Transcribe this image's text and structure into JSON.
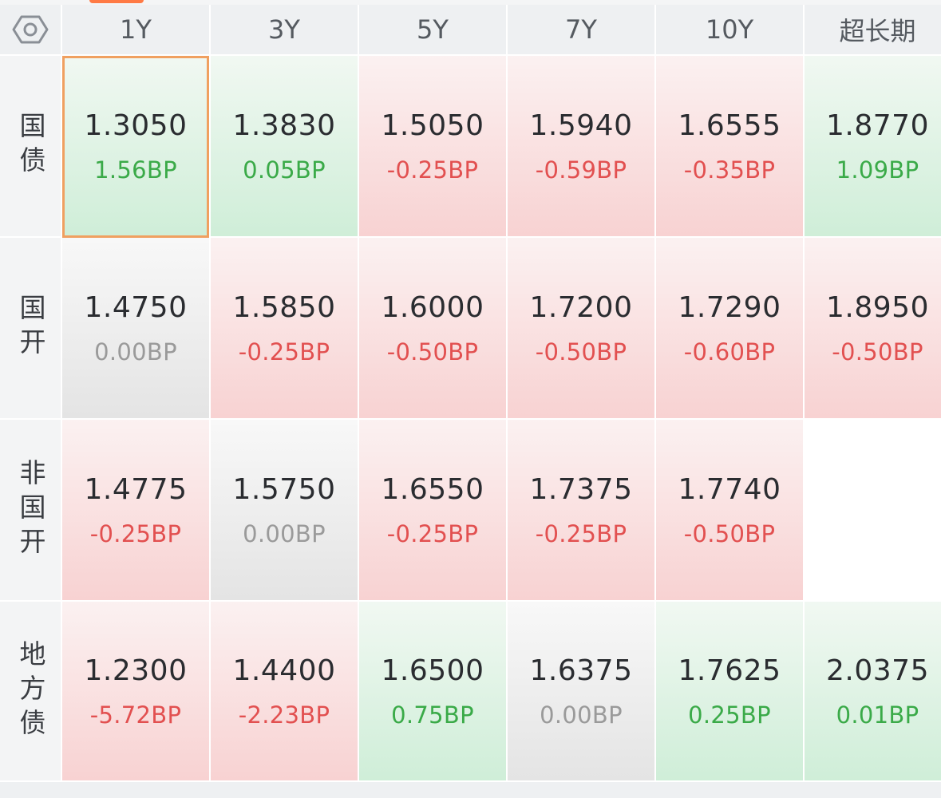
{
  "header": {
    "columns": [
      "1Y",
      "3Y",
      "5Y",
      "7Y",
      "10Y",
      "超长期"
    ]
  },
  "rows": [
    {
      "label": "国债",
      "cells": [
        {
          "rate": "1.3050",
          "chg": "1.56BP"
        },
        {
          "rate": "1.3830",
          "chg": "0.05BP"
        },
        {
          "rate": "1.5050",
          "chg": "-0.25BP"
        },
        {
          "rate": "1.5940",
          "chg": "-0.59BP"
        },
        {
          "rate": "1.6555",
          "chg": "-0.35BP"
        },
        {
          "rate": "1.8770",
          "chg": "1.09BP"
        }
      ]
    },
    {
      "label": "国开",
      "cells": [
        {
          "rate": "1.4750",
          "chg": "0.00BP"
        },
        {
          "rate": "1.5850",
          "chg": "-0.25BP"
        },
        {
          "rate": "1.6000",
          "chg": "-0.50BP"
        },
        {
          "rate": "1.7200",
          "chg": "-0.50BP"
        },
        {
          "rate": "1.7290",
          "chg": "-0.60BP"
        },
        {
          "rate": "1.8950",
          "chg": "-0.50BP"
        }
      ]
    },
    {
      "label": "非国开",
      "cells": [
        {
          "rate": "1.4775",
          "chg": "-0.25BP"
        },
        {
          "rate": "1.5750",
          "chg": "0.00BP"
        },
        {
          "rate": "1.6550",
          "chg": "-0.25BP"
        },
        {
          "rate": "1.7375",
          "chg": "-0.25BP"
        },
        {
          "rate": "1.7740",
          "chg": "-0.50BP"
        },
        {
          "rate": "",
          "chg": ""
        }
      ]
    },
    {
      "label": "地方债",
      "cells": [
        {
          "rate": "1.2300",
          "chg": "-5.72BP"
        },
        {
          "rate": "1.4400",
          "chg": "-2.23BP"
        },
        {
          "rate": "1.6500",
          "chg": "0.75BP"
        },
        {
          "rate": "1.6375",
          "chg": "0.00BP"
        },
        {
          "rate": "1.7625",
          "chg": "0.25BP"
        },
        {
          "rate": "2.0375",
          "chg": "0.01BP"
        }
      ]
    }
  ],
  "selected": {
    "row": 0,
    "col": 0
  },
  "colors": {
    "down_text": "#3aaa48",
    "up_text": "#e25050",
    "flat_text": "#9a9a9a",
    "selected_border": "#f0a060"
  },
  "icons": {
    "corner": "settings-hexagon-icon"
  }
}
